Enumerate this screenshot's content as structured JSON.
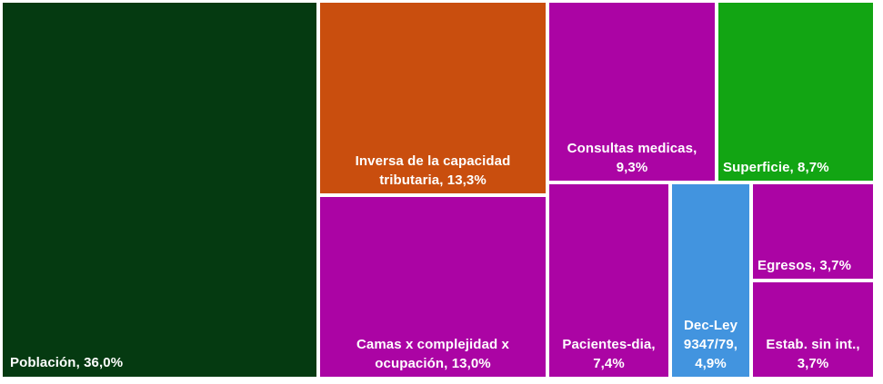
{
  "chart_data": {
    "type": "treemap",
    "title": "",
    "legend": "none",
    "background": "#ffffff",
    "label_text_color": "#ffffff",
    "value_format": "comma-decimal percent",
    "total": 100.0,
    "tiles": [
      {
        "name": "Población",
        "value": 36.0,
        "label": "Población, 36,0%",
        "color": "#053a11"
      },
      {
        "name": "Inversa de la capacidad tributaria",
        "value": 13.3,
        "label": "Inversa de la capacidad tributaria, 13,3%",
        "color": "#c94e0e"
      },
      {
        "name": "Camas x complejidad x ocupación",
        "value": 13.0,
        "label": "Camas x complejidad x ocupación, 13,0%",
        "color": "#ab04a4"
      },
      {
        "name": "Consultas medicas",
        "value": 9.3,
        "label": "Consultas medicas, 9,3%",
        "color": "#ab04a4"
      },
      {
        "name": "Superficie",
        "value": 8.7,
        "label": "Superficie, 8,7%",
        "color": "#12a513"
      },
      {
        "name": "Pacientes-dia",
        "value": 7.4,
        "label": "Pacientes-dia, 7,4%",
        "color": "#ab04a4"
      },
      {
        "name": "Dec-Ley 9347/79",
        "value": 4.9,
        "label": "Dec-Ley 9347/79, 4,9%",
        "color": "#4294df"
      },
      {
        "name": "Egresos",
        "value": 3.7,
        "label": "Egresos, 3,7%",
        "color": "#ab04a4"
      },
      {
        "name": "Estab. sin int.",
        "value": 3.7,
        "label": "Estab. sin int., 3,7%",
        "color": "#ab04a4"
      }
    ]
  }
}
